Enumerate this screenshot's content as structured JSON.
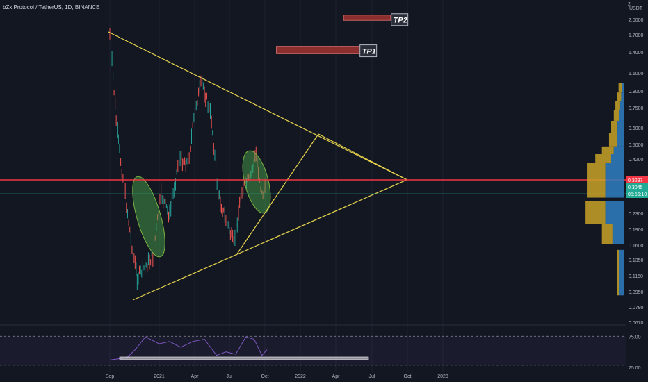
{
  "header": {
    "symbol_line": "bZx Protocol / TetherUS, 1D, BINANCE"
  },
  "price_axis": {
    "unit": "USDT",
    "top_label": "2",
    "labels": [
      "2.0000",
      "1.7000",
      "1.4000",
      "1.1000",
      "0.9000",
      "0.7500",
      "0.6000",
      "0.5000",
      "0.4200",
      "0.3297",
      "0.3045",
      "0.2300",
      "0.1900",
      "0.1600",
      "0.1350",
      "0.1150",
      "0.0950",
      "0.0790",
      "0.0670"
    ]
  },
  "badges": {
    "red_level": {
      "value": "0.3297",
      "color": "#f23645"
    },
    "current": {
      "price": "0.3045",
      "countdown": "05:56:10",
      "color": "#22ab94"
    }
  },
  "rsi_axis": {
    "labels": [
      "75.00",
      "25.00"
    ]
  },
  "time_axis": {
    "labels": [
      "Sep",
      "2021",
      "Apr",
      "Jul",
      "Oct",
      "2022",
      "Apr",
      "Jul",
      "Oct",
      "2023"
    ]
  },
  "targets": [
    {
      "label": "TP1",
      "color": "#8b2e2e"
    },
    {
      "label": "TP2",
      "color": "#8b2e2e"
    }
  ],
  "chart_data": {
    "type": "line",
    "title": "bZx Protocol / TetherUS, 1D, BINANCE",
    "xlabel": "",
    "ylabel": "USDT",
    "y_scale": "log",
    "ylim": [
      0.065,
      2.2
    ],
    "x": [
      "2020-09-01",
      "2020-09-20",
      "2020-10-25",
      "2020-11-10",
      "2020-12-20",
      "2021-01-10",
      "2021-02-01",
      "2021-02-25",
      "2021-03-20",
      "2021-04-10",
      "2021-04-25",
      "2021-05-19",
      "2021-06-05",
      "2021-06-22",
      "2021-07-15",
      "2021-08-05",
      "2021-08-25",
      "2021-09-10",
      "2021-09-25",
      "2021-10-08"
    ],
    "series": [
      {
        "values": [
          1.7,
          0.55,
          0.17,
          0.11,
          0.14,
          0.28,
          0.22,
          0.42,
          0.4,
          0.78,
          1.0,
          0.65,
          0.28,
          0.22,
          0.16,
          0.3,
          0.33,
          0.44,
          0.28,
          0.3
        ]
      }
    ],
    "annotations": {
      "horizontal_level": 0.3297,
      "current_price": 0.3045,
      "tp1_zone": [
        1.36,
        1.48
      ],
      "tp2_zone": [
        1.98,
        2.1
      ],
      "triangle_apex": {
        "x": "2022-10-01",
        "y": 0.33
      }
    },
    "rsi": {
      "x": [
        "2020-09-01",
        "2020-10-15",
        "2020-11-05",
        "2020-12-01",
        "2021-01-05",
        "2021-02-01",
        "2021-03-01",
        "2021-04-01",
        "2021-05-01",
        "2021-06-01",
        "2021-06-25",
        "2021-07-20",
        "2021-08-15",
        "2021-09-05",
        "2021-09-25",
        "2021-10-08"
      ],
      "values": [
        34,
        38,
        52,
        74,
        62,
        66,
        56,
        66,
        70,
        42,
        48,
        44,
        74,
        70,
        42,
        52
      ],
      "ylim": [
        20,
        85
      ]
    }
  }
}
